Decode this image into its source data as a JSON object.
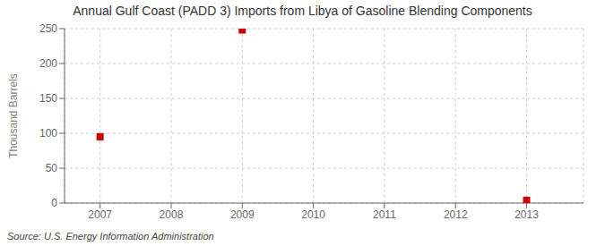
{
  "chart_data": {
    "type": "scatter",
    "title": "Annual Gulf Coast (PADD 3) Imports from Libya of Gasoline Blending Components",
    "ylabel": "Thousand Barrels",
    "annotation": "Source: U.S. Energy Information Administration",
    "x": [
      2007,
      2009,
      2013
    ],
    "values": [
      95,
      248,
      4
    ],
    "color": "#cc0000",
    "marker": "square",
    "xlim": [
      2006.5,
      2013.8
    ],
    "xticks": [
      2007,
      2008,
      2009,
      2010,
      2011,
      2012,
      2013
    ],
    "ylim": [
      0,
      250
    ],
    "yticks": [
      0,
      50,
      100,
      150,
      200,
      250
    ],
    "grid": true
  }
}
